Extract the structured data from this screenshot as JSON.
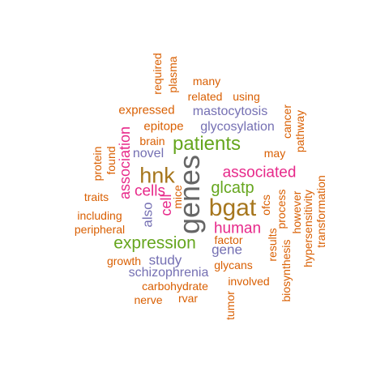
{
  "palette": {
    "orange": "#D95F02",
    "purple": "#7570B3",
    "magenta": "#E7298A",
    "green": "#66A61E",
    "gold": "#A6761D",
    "gray": "#666666"
  },
  "words": [
    {
      "text": "genes",
      "color": "gray"
    },
    {
      "text": "bgat",
      "color": "gold"
    },
    {
      "text": "hnk",
      "color": "gold"
    },
    {
      "text": "patients",
      "color": "green"
    },
    {
      "text": "expression",
      "color": "green"
    },
    {
      "text": "associated",
      "color": "magenta"
    },
    {
      "text": "glcatp",
      "color": "green"
    },
    {
      "text": "human",
      "color": "magenta"
    },
    {
      "text": "cells",
      "color": "magenta"
    },
    {
      "text": "association",
      "color": "magenta"
    },
    {
      "text": "cell",
      "color": "magenta"
    },
    {
      "text": "also",
      "color": "purple"
    },
    {
      "text": "gene",
      "color": "purple"
    },
    {
      "text": "study",
      "color": "purple"
    },
    {
      "text": "schizophrenia",
      "color": "purple"
    },
    {
      "text": "glycosylation",
      "color": "purple"
    },
    {
      "text": "mastocytosis",
      "color": "purple"
    },
    {
      "text": "novel",
      "color": "purple"
    },
    {
      "text": "mice",
      "color": "orange"
    },
    {
      "text": "expressed",
      "color": "orange"
    },
    {
      "text": "epitope",
      "color": "orange"
    },
    {
      "text": "brain",
      "color": "orange"
    },
    {
      "text": "related",
      "color": "orange"
    },
    {
      "text": "using",
      "color": "orange"
    },
    {
      "text": "many",
      "color": "orange"
    },
    {
      "text": "required",
      "color": "orange"
    },
    {
      "text": "plasma",
      "color": "orange"
    },
    {
      "text": "cancer",
      "color": "orange"
    },
    {
      "text": "pathway",
      "color": "orange"
    },
    {
      "text": "may",
      "color": "orange"
    },
    {
      "text": "protein",
      "color": "orange"
    },
    {
      "text": "found",
      "color": "orange"
    },
    {
      "text": "traits",
      "color": "orange"
    },
    {
      "text": "including",
      "color": "orange"
    },
    {
      "text": "peripheral",
      "color": "orange"
    },
    {
      "text": "growth",
      "color": "orange"
    },
    {
      "text": "carbohydrate",
      "color": "orange"
    },
    {
      "text": "nerve",
      "color": "orange"
    },
    {
      "text": "rvar",
      "color": "orange"
    },
    {
      "text": "factor",
      "color": "orange"
    },
    {
      "text": "glycans",
      "color": "orange"
    },
    {
      "text": "involved",
      "color": "orange"
    },
    {
      "text": "tumor",
      "color": "orange"
    },
    {
      "text": "ofcs",
      "color": "orange"
    },
    {
      "text": "results",
      "color": "orange"
    },
    {
      "text": "process",
      "color": "orange"
    },
    {
      "text": "biosynthesis",
      "color": "orange"
    },
    {
      "text": "however",
      "color": "orange"
    },
    {
      "text": "hypersensitivity",
      "color": "orange"
    },
    {
      "text": "transformation",
      "color": "orange"
    }
  ]
}
